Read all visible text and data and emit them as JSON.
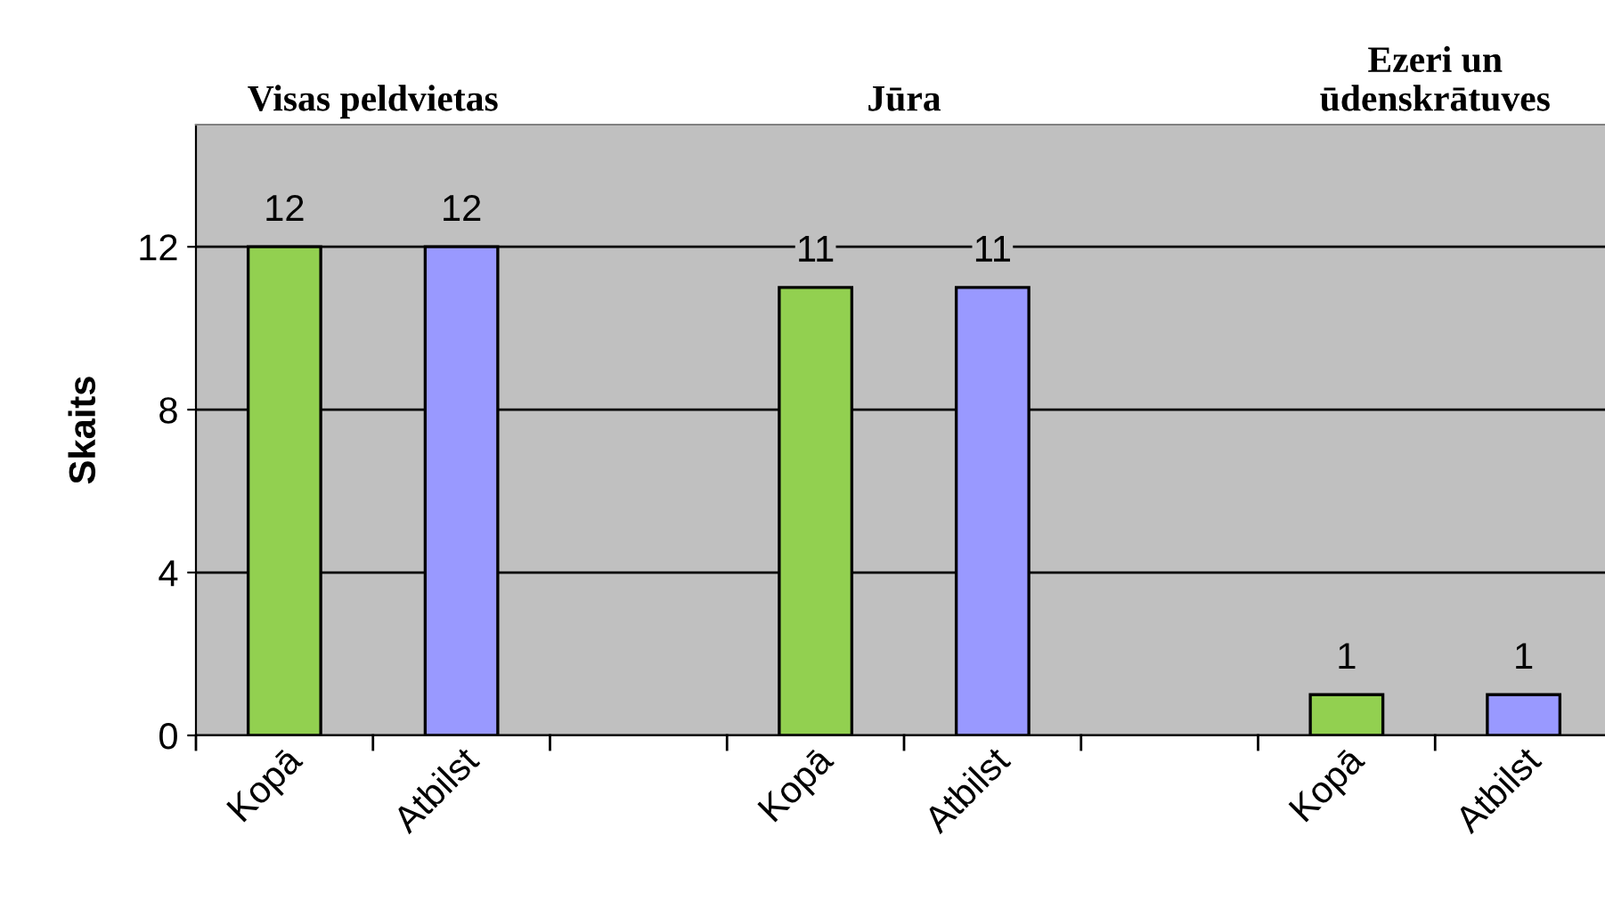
{
  "chart_data": {
    "type": "bar",
    "categories": [
      "Kopā",
      "Atbilst",
      null,
      "Kopā",
      "Atbilst",
      null,
      "Kopā",
      "Atbilst"
    ],
    "values": [
      12,
      12,
      null,
      11,
      11,
      null,
      1,
      1
    ],
    "colors": [
      "#92d050",
      "#9999ff",
      null,
      "#92d050",
      "#9999ff",
      null,
      "#92d050",
      "#9999ff"
    ],
    "ylabel": "Skaits",
    "annotations": [
      "Visas peldvietas",
      "Jūra",
      "Ezeri un\nūdenskrātuves"
    ],
    "ylim": [
      0,
      15
    ],
    "yticks": [
      0,
      4,
      8,
      12
    ],
    "grid": "y",
    "data_labels": true,
    "legend": false
  }
}
